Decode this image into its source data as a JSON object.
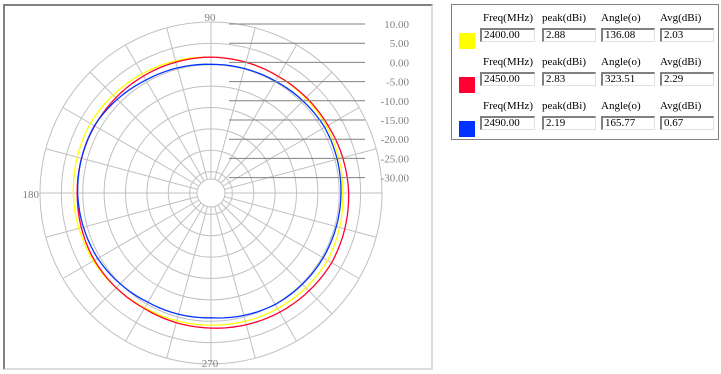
{
  "polar_plot": {
    "angle_labels": {
      "top": "90",
      "left": "180",
      "bottom": "270"
    },
    "radial_labels": [
      "10.00",
      "5.00",
      "0.00",
      "-5.00",
      "-10.00",
      "-15.00",
      "-20.00",
      "-25.00",
      "-30.00"
    ],
    "grid_color": "#c0c0c0"
  },
  "legend": {
    "headers": [
      "Freq(MHz)",
      "peak(dBi)",
      "Angle(o)",
      "Avg(dBi)"
    ],
    "rows": [
      {
        "color": "#ffff00",
        "freq": "2400.00",
        "peak": "2.88",
        "angle": "136.08",
        "avg": "2.03"
      },
      {
        "color": "#ff0033",
        "freq": "2450.00",
        "peak": "2.83",
        "angle": "323.51",
        "avg": "2.29"
      },
      {
        "color": "#0033ff",
        "freq": "2490.00",
        "peak": "2.19",
        "angle": "165.77",
        "avg": "0.67"
      }
    ]
  },
  "chart_data": {
    "type": "polar",
    "title": "",
    "r_axis_ticks": [
      10,
      5,
      0,
      -5,
      -10,
      -15,
      -20,
      -25,
      -30
    ],
    "r_range_dbi": [
      -30,
      10
    ],
    "theta_labels": [
      "90",
      "180",
      "270"
    ],
    "theta_step_deg": 15,
    "grid": true,
    "legend_position": "right",
    "series": [
      {
        "name": "2400.00",
        "color": "#ffff00",
        "points_theta_deg": [
          0,
          30,
          60,
          90,
          120,
          150,
          180,
          210,
          240,
          270,
          300,
          330
        ],
        "points_r_dbi": [
          0.8,
          1.2,
          1.5,
          1.8,
          2.2,
          2.6,
          2.2,
          1.8,
          1.0,
          0.9,
          1.2,
          1.5
        ]
      },
      {
        "name": "2450.00",
        "color": "#ff0033",
        "points_theta_deg": [
          0,
          30,
          60,
          90,
          120,
          150,
          180,
          210,
          240,
          270,
          300,
          330
        ],
        "points_r_dbi": [
          2.2,
          1.6,
          1.5,
          1.8,
          1.6,
          1.4,
          1.3,
          1.5,
          1.2,
          1.6,
          2.2,
          2.6
        ]
      },
      {
        "name": "2490.00",
        "color": "#0033ff",
        "points_theta_deg": [
          0,
          30,
          60,
          90,
          120,
          150,
          180,
          210,
          240,
          270,
          300,
          330
        ],
        "points_r_dbi": [
          0.4,
          0.7,
          0.2,
          0.1,
          0.5,
          1.5,
          1.2,
          0.6,
          -0.5,
          -0.8,
          0.1,
          0.3
        ]
      }
    ]
  }
}
